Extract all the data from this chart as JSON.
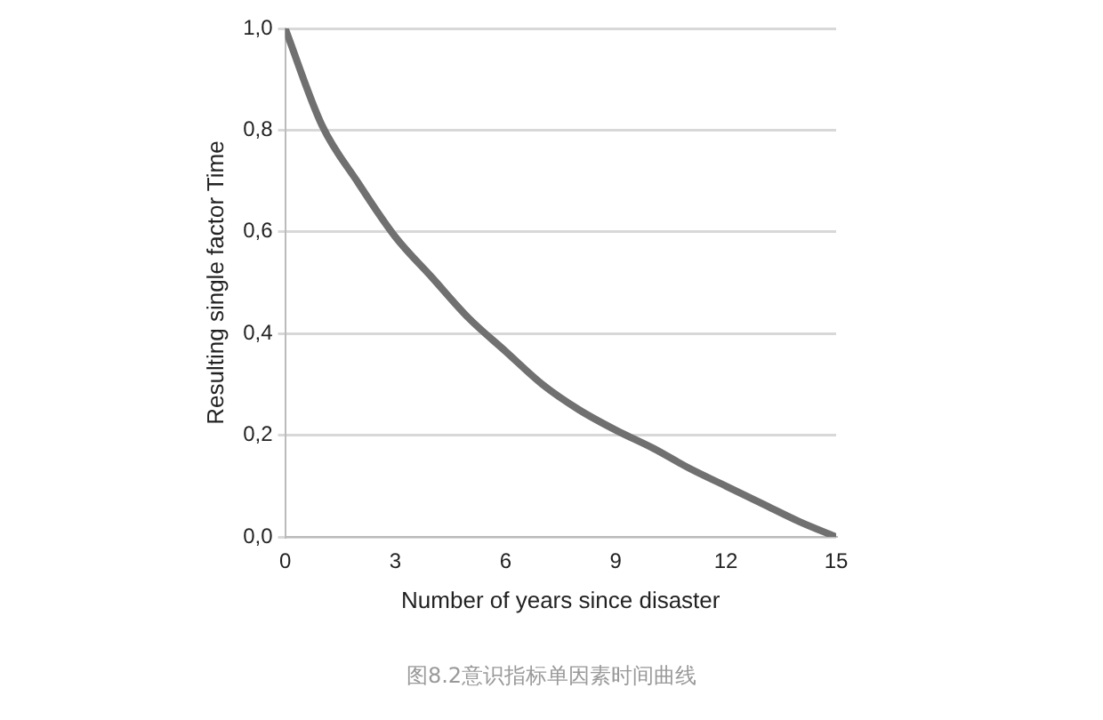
{
  "chart_data": {
    "type": "line",
    "xlabel": "Number of years since disaster",
    "ylabel": "Resulting single factor Time",
    "x": [
      0,
      1,
      2,
      3,
      4,
      5,
      6,
      7,
      8,
      9,
      10,
      11,
      12,
      13,
      14,
      15
    ],
    "series": [
      {
        "color": "#707070",
        "values": [
          1.0,
          0.81,
          0.695,
          0.59,
          0.51,
          0.43,
          0.365,
          0.3,
          0.25,
          0.21,
          0.175,
          0.135,
          0.1,
          0.065,
          0.03,
          0.0
        ]
      }
    ],
    "xlim": [
      0,
      15
    ],
    "xticks": [
      0,
      3,
      6,
      9,
      12,
      15
    ],
    "ylim": [
      0,
      1
    ],
    "yticks": [
      {
        "value": 0,
        "label": "0,0"
      },
      {
        "value": 0.2,
        "label": "0,2"
      },
      {
        "value": 0.4,
        "label": "0,4"
      },
      {
        "value": 0.6,
        "label": "0,6"
      },
      {
        "value": 0.8,
        "label": "0,8"
      },
      {
        "value": 1,
        "label": "1,0"
      }
    ],
    "grid": "y",
    "legend": false,
    "marker": "none",
    "line_style": "solid",
    "annotations": [
      "图8.2意识指标单因素时间曲线"
    ]
  }
}
